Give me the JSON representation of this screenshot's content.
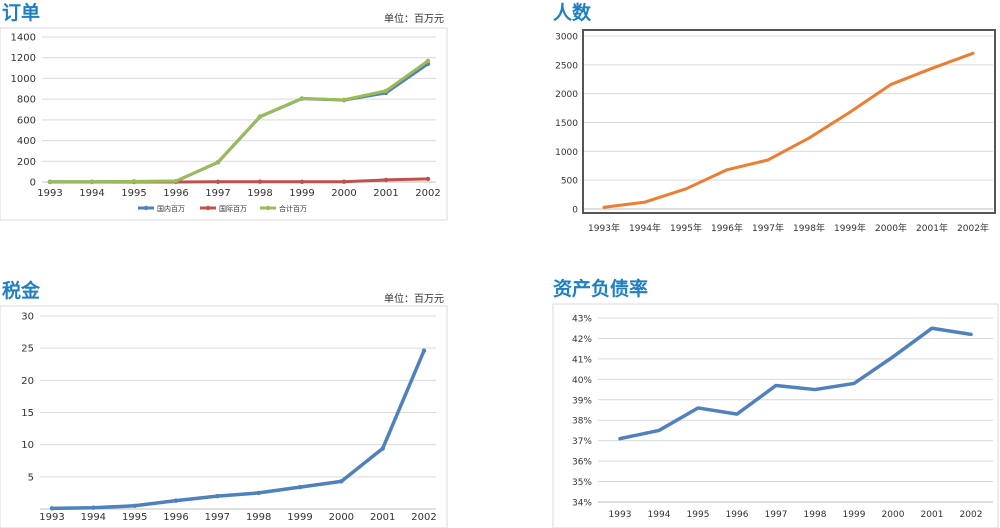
{
  "chart_data": [
    {
      "type": "line",
      "title": "订单",
      "unit": "单位：百万元",
      "categories": [
        "1993",
        "1994",
        "1995",
        "1996",
        "1997",
        "1998",
        "1999",
        "2000",
        "2001",
        "2002"
      ],
      "ylim": [
        0,
        1400
      ],
      "yticks": [
        0,
        200,
        400,
        600,
        800,
        1000,
        1200,
        1400
      ],
      "grid": true,
      "legend": "bottom",
      "series": [
        {
          "name": "国内百万",
          "color": "#4f81bd",
          "values": [
            2,
            3,
            5,
            8,
            190,
            630,
            805,
            790,
            860,
            1140
          ]
        },
        {
          "name": "国际百万",
          "color": "#c0504d",
          "values": [
            0,
            0,
            0,
            0,
            2,
            3,
            2,
            3,
            20,
            30
          ]
        },
        {
          "name": "合计百万",
          "color": "#9bbb59",
          "values": [
            2,
            3,
            5,
            8,
            192,
            633,
            807,
            793,
            880,
            1170
          ]
        }
      ]
    },
    {
      "type": "line",
      "title": "人数",
      "categories": [
        "1993年",
        "1994年",
        "1995年",
        "1996年",
        "1997年",
        "1998年",
        "1999年",
        "2000年",
        "2001年",
        "2002年"
      ],
      "ylim": [
        0,
        3000
      ],
      "yticks": [
        0,
        500,
        1000,
        1500,
        2000,
        2500,
        3000
      ],
      "grid": true,
      "series": [
        {
          "color": "#ed7d31",
          "values": [
            30,
            120,
            350,
            680,
            850,
            1230,
            1680,
            2160,
            2440,
            2700
          ]
        }
      ]
    },
    {
      "type": "line",
      "title": "税金",
      "unit": "单位：百万元",
      "categories": [
        "1993",
        "1994",
        "1995",
        "1996",
        "1997",
        "1998",
        "1999",
        "2000",
        "2001",
        "2002"
      ],
      "ylim": [
        0,
        30
      ],
      "yticks": [
        5,
        10,
        15,
        20,
        25,
        30
      ],
      "grid": true,
      "series": [
        {
          "color": "#4f81bd",
          "values": [
            0.1,
            0.2,
            0.5,
            1.3,
            2.0,
            2.5,
            3.4,
            4.3,
            9.4,
            24.6
          ]
        }
      ]
    },
    {
      "type": "line",
      "title": "资产负债率",
      "categories": [
        "1993",
        "1994",
        "1995",
        "1996",
        "1997",
        "1998",
        "1999",
        "2000",
        "2001",
        "2002"
      ],
      "ylim": [
        34,
        43
      ],
      "yticks": [
        34,
        35,
        36,
        37,
        38,
        39,
        40,
        41,
        42,
        43
      ],
      "ytick_labels": [
        "34%",
        "35%",
        "36%",
        "37%",
        "38%",
        "39%",
        "40%",
        "41%",
        "42%",
        "43%"
      ],
      "grid": true,
      "series": [
        {
          "color": "#4f81bd",
          "values": [
            37.1,
            37.5,
            38.6,
            38.3,
            39.7,
            39.5,
            39.8,
            41.1,
            42.5,
            42.2
          ]
        }
      ]
    }
  ]
}
